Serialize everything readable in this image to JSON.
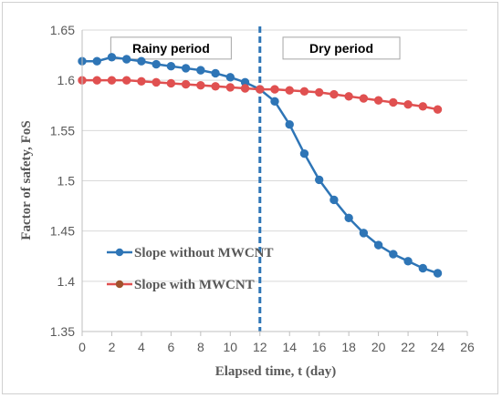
{
  "chart_data": {
    "type": "line",
    "xlabel": "Elapsed time, t (day)",
    "ylabel": "Factor of safety, FoS",
    "xlim": [
      0,
      26
    ],
    "ylim": [
      1.35,
      1.65
    ],
    "x_ticks": [
      0,
      2,
      4,
      6,
      8,
      10,
      12,
      14,
      16,
      18,
      20,
      22,
      24,
      26
    ],
    "y_ticks": [
      "1.35",
      "1.4",
      "1.45",
      "1.5",
      "1.55",
      "1.6",
      "1.65"
    ],
    "grid": "horizontal",
    "series": [
      {
        "name": "Slope without MWCNT",
        "color": "#2e75b6",
        "x": [
          0,
          1,
          2,
          3,
          4,
          5,
          6,
          7,
          8,
          9,
          10,
          11,
          12,
          13,
          14,
          15,
          16,
          17,
          18,
          19,
          20,
          21,
          22,
          23,
          24
        ],
        "y": [
          1.619,
          1.619,
          1.623,
          1.621,
          1.619,
          1.616,
          1.614,
          1.612,
          1.61,
          1.607,
          1.603,
          1.598,
          1.591,
          1.579,
          1.556,
          1.527,
          1.501,
          1.481,
          1.463,
          1.448,
          1.436,
          1.427,
          1.42,
          1.413,
          1.408
        ]
      },
      {
        "name": "Slope with MWCNT",
        "color": "#e05050",
        "x": [
          0,
          1,
          2,
          3,
          4,
          5,
          6,
          7,
          8,
          9,
          10,
          11,
          12,
          13,
          14,
          15,
          16,
          17,
          18,
          19,
          20,
          21,
          22,
          23,
          24
        ],
        "y": [
          1.6,
          1.6,
          1.6,
          1.6,
          1.599,
          1.598,
          1.597,
          1.596,
          1.595,
          1.594,
          1.593,
          1.592,
          1.591,
          1.591,
          1.59,
          1.589,
          1.588,
          1.586,
          1.584,
          1.582,
          1.58,
          1.578,
          1.576,
          1.574,
          1.571
        ]
      }
    ],
    "legend_position": "bottom-left",
    "legend_marker_color": "#a0522d",
    "divider": {
      "x": 12,
      "color": "#2e75b6",
      "style": "dashed"
    },
    "annotations": [
      {
        "text": "Rainy period",
        "x": 6,
        "y": 1.632
      },
      {
        "text": "Dry period",
        "x": 17.5,
        "y": 1.632
      }
    ]
  }
}
